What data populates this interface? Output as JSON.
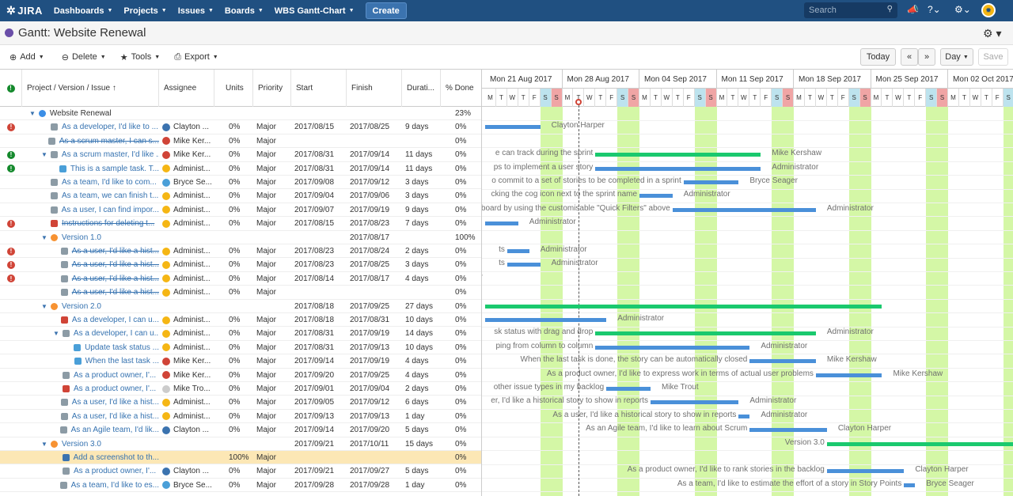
{
  "nav": {
    "logo": "JIRA",
    "items": [
      "Dashboards",
      "Projects",
      "Issues",
      "Boards",
      "WBS Gantt-Chart"
    ],
    "create": "Create",
    "search_placeholder": "Search"
  },
  "title": "Gantt:  Website Renewal",
  "toolbar": {
    "add": "Add",
    "delete": "Delete",
    "tools": "Tools",
    "export": "Export",
    "today": "Today",
    "prev": "«",
    "next": "»",
    "scale": "Day",
    "save": "Save"
  },
  "columns": {
    "issue": "Project / Version / Issue  ↑",
    "assignee": "Assignee",
    "units": "Units",
    "priority": "Priority",
    "start": "Start",
    "finish": "Finish",
    "duration": "Durati...",
    "done": "% Done"
  },
  "rows": [
    {
      "alert": "",
      "indent": 1,
      "caret": "▼",
      "type": "proj",
      "issue": "Website Renewal",
      "link": false,
      "strike": false,
      "assignee": "",
      "av": "",
      "units": "",
      "priority": "",
      "start": "",
      "finish": "",
      "duration": "",
      "done": "23%"
    },
    {
      "alert": "red",
      "indent": 2,
      "caret": "",
      "type": "story",
      "issue": "As a developer, I'd like to ...",
      "link": true,
      "strike": false,
      "assignee": "Clayton ...",
      "av": "#3b73af",
      "units": "0%",
      "priority": "Major",
      "start": "2017/08/15",
      "finish": "2017/08/25",
      "duration": "9 days",
      "done": "0%"
    },
    {
      "alert": "",
      "indent": 2,
      "caret": "",
      "type": "story",
      "issue": "As a scrum master, I can s...",
      "link": true,
      "strike": true,
      "assignee": "Mike Ker...",
      "av": "#d04437",
      "units": "0%",
      "priority": "Major",
      "start": "",
      "finish": "",
      "duration": "",
      "done": "0%"
    },
    {
      "alert": "green",
      "indent": 2,
      "caret": "▼",
      "type": "story",
      "issue": "As a scrum master, I'd like ...",
      "link": true,
      "strike": false,
      "assignee": "Mike Ker...",
      "av": "#d04437",
      "units": "0%",
      "priority": "Major",
      "start": "2017/08/31",
      "finish": "2017/09/14",
      "duration": "11 days",
      "done": "0%"
    },
    {
      "alert": "green",
      "indent": 3,
      "caret": "",
      "type": "task",
      "issue": "This is a sample task. T...",
      "link": true,
      "strike": false,
      "assignee": "Administ...",
      "av": "#f5b614",
      "units": "0%",
      "priority": "Major",
      "start": "2017/08/31",
      "finish": "2017/09/14",
      "duration": "11 days",
      "done": "0%"
    },
    {
      "alert": "",
      "indent": 2,
      "caret": "",
      "type": "story",
      "issue": "As a team, I'd like to com...",
      "link": true,
      "strike": false,
      "assignee": "Bryce Se...",
      "av": "#4a9fd8",
      "units": "0%",
      "priority": "Major",
      "start": "2017/09/08",
      "finish": "2017/09/12",
      "duration": "3 days",
      "done": "0%"
    },
    {
      "alert": "",
      "indent": 2,
      "caret": "",
      "type": "story",
      "issue": "As a team, we can finish t...",
      "link": true,
      "strike": false,
      "assignee": "Administ...",
      "av": "#f5b614",
      "units": "0%",
      "priority": "Major",
      "start": "2017/09/04",
      "finish": "2017/09/06",
      "duration": "3 days",
      "done": "0%"
    },
    {
      "alert": "",
      "indent": 2,
      "caret": "",
      "type": "story",
      "issue": "As a user, I can find impor...",
      "link": true,
      "strike": false,
      "assignee": "Administ...",
      "av": "#f5b614",
      "units": "0%",
      "priority": "Major",
      "start": "2017/09/07",
      "finish": "2017/09/19",
      "duration": "9 days",
      "done": "0%"
    },
    {
      "alert": "red",
      "indent": 2,
      "caret": "",
      "type": "bug",
      "issue": "Instructions for deleting t...",
      "link": true,
      "strike": true,
      "assignee": "Administ...",
      "av": "#f5b614",
      "units": "0%",
      "priority": "Major",
      "start": "2017/08/15",
      "finish": "2017/08/23",
      "duration": "7 days",
      "done": "0%"
    },
    {
      "alert": "",
      "indent": 2,
      "caret": "▼",
      "type": "ver",
      "issue": "Version 1.0",
      "link": true,
      "strike": false,
      "assignee": "",
      "av": "",
      "units": "",
      "priority": "",
      "start": "",
      "finish": "2017/08/17",
      "duration": "",
      "done": "100%"
    },
    {
      "alert": "red",
      "indent": 3,
      "caret": "",
      "type": "story",
      "issue": "As a user, I'd like a hist...",
      "link": true,
      "strike": true,
      "assignee": "Administ...",
      "av": "#f5b614",
      "units": "0%",
      "priority": "Major",
      "start": "2017/08/23",
      "finish": "2017/08/24",
      "duration": "2 days",
      "done": "0%"
    },
    {
      "alert": "red",
      "indent": 3,
      "caret": "",
      "type": "story",
      "issue": "As a user, I'd like a hist...",
      "link": true,
      "strike": true,
      "assignee": "Administ...",
      "av": "#f5b614",
      "units": "0%",
      "priority": "Major",
      "start": "2017/08/23",
      "finish": "2017/08/25",
      "duration": "3 days",
      "done": "0%"
    },
    {
      "alert": "red",
      "indent": 3,
      "caret": "",
      "type": "story",
      "issue": "As a user, I'd like a hist...",
      "link": true,
      "strike": true,
      "assignee": "Administ...",
      "av": "#f5b614",
      "units": "0%",
      "priority": "Major",
      "start": "2017/08/14",
      "finish": "2017/08/17",
      "duration": "4 days",
      "done": "0%"
    },
    {
      "alert": "",
      "indent": 3,
      "caret": "",
      "type": "story",
      "issue": "As a user, I'd like a hist...",
      "link": true,
      "strike": true,
      "assignee": "Administ...",
      "av": "#f5b614",
      "units": "0%",
      "priority": "Major",
      "start": "",
      "finish": "",
      "duration": "",
      "done": "0%"
    },
    {
      "alert": "",
      "indent": 2,
      "caret": "▼",
      "type": "ver",
      "issue": "Version 2.0",
      "link": true,
      "strike": false,
      "assignee": "",
      "av": "",
      "units": "",
      "priority": "",
      "start": "2017/08/18",
      "finish": "2017/09/25",
      "duration": "27 days",
      "done": "0%"
    },
    {
      "alert": "",
      "indent": 3,
      "caret": "",
      "type": "bug",
      "issue": "As a developer, I can u...",
      "link": true,
      "strike": false,
      "assignee": "Administ...",
      "av": "#f5b614",
      "units": "0%",
      "priority": "Major",
      "start": "2017/08/18",
      "finish": "2017/08/31",
      "duration": "10 days",
      "done": "0%"
    },
    {
      "alert": "",
      "indent": 3,
      "caret": "▼",
      "type": "story",
      "issue": "As a developer, I can u...",
      "link": true,
      "strike": false,
      "assignee": "Administ...",
      "av": "#f5b614",
      "units": "0%",
      "priority": "Major",
      "start": "2017/08/31",
      "finish": "2017/09/19",
      "duration": "14 days",
      "done": "0%"
    },
    {
      "alert": "",
      "indent": 4,
      "caret": "",
      "type": "task",
      "issue": "Update task status ...",
      "link": true,
      "strike": false,
      "assignee": "Administ...",
      "av": "#f5b614",
      "units": "0%",
      "priority": "Major",
      "start": "2017/08/31",
      "finish": "2017/09/13",
      "duration": "10 days",
      "done": "0%"
    },
    {
      "alert": "",
      "indent": 4,
      "caret": "",
      "type": "task",
      "issue": "When the last task ...",
      "link": true,
      "strike": false,
      "assignee": "Mike Ker...",
      "av": "#d04437",
      "units": "0%",
      "priority": "Major",
      "start": "2017/09/14",
      "finish": "2017/09/19",
      "duration": "4 days",
      "done": "0%"
    },
    {
      "alert": "",
      "indent": 3,
      "caret": "",
      "type": "story",
      "issue": "As a product owner, I'...",
      "link": true,
      "strike": false,
      "assignee": "Mike Ker...",
      "av": "#d04437",
      "units": "0%",
      "priority": "Major",
      "start": "2017/09/20",
      "finish": "2017/09/25",
      "duration": "4 days",
      "done": "0%"
    },
    {
      "alert": "",
      "indent": 3,
      "caret": "",
      "type": "bug",
      "issue": "As a product owner, I'...",
      "link": true,
      "strike": false,
      "assignee": "Mike Tro...",
      "av": "#ccc",
      "units": "0%",
      "priority": "Major",
      "start": "2017/09/01",
      "finish": "2017/09/04",
      "duration": "2 days",
      "done": "0%"
    },
    {
      "alert": "",
      "indent": 3,
      "caret": "",
      "type": "story",
      "issue": "As a user, I'd like a hist...",
      "link": true,
      "strike": false,
      "assignee": "Administ...",
      "av": "#f5b614",
      "units": "0%",
      "priority": "Major",
      "start": "2017/09/05",
      "finish": "2017/09/12",
      "duration": "6 days",
      "done": "0%"
    },
    {
      "alert": "",
      "indent": 3,
      "caret": "",
      "type": "story",
      "issue": "As a user, I'd like a hist...",
      "link": true,
      "strike": false,
      "assignee": "Administ...",
      "av": "#f5b614",
      "units": "0%",
      "priority": "Major",
      "start": "2017/09/13",
      "finish": "2017/09/13",
      "duration": "1 day",
      "done": "0%"
    },
    {
      "alert": "",
      "indent": 3,
      "caret": "",
      "type": "story",
      "issue": "As an Agile team, I'd lik...",
      "link": true,
      "strike": false,
      "assignee": "Clayton ...",
      "av": "#3b73af",
      "units": "0%",
      "priority": "Major",
      "start": "2017/09/14",
      "finish": "2017/09/20",
      "duration": "5 days",
      "done": "0%"
    },
    {
      "alert": "",
      "indent": 2,
      "caret": "▼",
      "type": "ver",
      "issue": "Version 3.0",
      "link": true,
      "strike": false,
      "assignee": "",
      "av": "",
      "units": "",
      "priority": "",
      "start": "2017/09/21",
      "finish": "2017/10/11",
      "duration": "15 days",
      "done": "0%"
    },
    {
      "alert": "",
      "indent": 3,
      "caret": "",
      "type": "check",
      "issue": "Add a screenshot to th...",
      "link": true,
      "strike": false,
      "assignee": "",
      "av": "",
      "units": "100%",
      "priority": "Major",
      "start": "",
      "finish": "",
      "duration": "",
      "done": "0%",
      "selected": true
    },
    {
      "alert": "",
      "indent": 3,
      "caret": "",
      "type": "story",
      "issue": "As a product owner, I'...",
      "link": true,
      "strike": false,
      "assignee": "Clayton ...",
      "av": "#3b73af",
      "units": "0%",
      "priority": "Major",
      "start": "2017/09/21",
      "finish": "2017/09/27",
      "duration": "5 days",
      "done": "0%"
    },
    {
      "alert": "",
      "indent": 3,
      "caret": "",
      "type": "story",
      "issue": "As a team, I'd like to es...",
      "link": true,
      "strike": false,
      "assignee": "Bryce Se...",
      "av": "#4a9fd8",
      "units": "0%",
      "priority": "Major",
      "start": "2017/09/28",
      "finish": "2017/09/28",
      "duration": "1 day",
      "done": "0%"
    }
  ],
  "weeks": [
    "Mon 21 Aug 2017",
    "Mon 28 Aug 2017",
    "Mon 04 Sep 2017",
    "Mon 11 Sep 2017",
    "Mon 18 Sep 2017",
    "Mon 25 Sep 2017",
    "Mon 02 Oct 2017"
  ],
  "day_letters": [
    "M",
    "T",
    "W",
    "T",
    "F",
    "S",
    "S"
  ],
  "chart_data": {
    "type": "gantt",
    "first_day": "2017/08/21",
    "today": "2017/08/29",
    "bars": [
      {
        "row": 1,
        "start": 0,
        "end": 5,
        "kind": "task",
        "label": "Clayton Harper"
      },
      {
        "row": 3,
        "start": 10,
        "end": 25,
        "kind": "summary",
        "label": "Mike Kershaw",
        "prefix": "e can track during the sprint"
      },
      {
        "row": 4,
        "start": 10,
        "end": 25,
        "kind": "task",
        "label": "Administrator",
        "prefix": "ps to implement a user story"
      },
      {
        "row": 5,
        "start": 18,
        "end": 23,
        "kind": "task",
        "label": "Bryce Seager",
        "prefix": "o commit to a set of stories to be completed in a sprint"
      },
      {
        "row": 6,
        "start": 14,
        "end": 17,
        "kind": "task",
        "label": "Administrator",
        "prefix": "cking the cog icon next to the sprint name"
      },
      {
        "row": 7,
        "start": 17,
        "end": 30,
        "kind": "task",
        "label": "Administrator",
        "prefix": "board by using the customisable \"Quick Filters\" above"
      },
      {
        "row": 8,
        "start": 0,
        "end": 3,
        "kind": "task",
        "label": "Administrator"
      },
      {
        "row": 10,
        "start": 2,
        "end": 4,
        "kind": "task",
        "label": "Administrator",
        "prefix": "ts"
      },
      {
        "row": 11,
        "start": 2,
        "end": 5,
        "kind": "task",
        "label": "Administrator",
        "prefix": "ts"
      },
      {
        "row": 12,
        "start": 0,
        "end": 0,
        "kind": "task",
        "label": "",
        "prefix": "istrator"
      },
      {
        "row": 14,
        "start": 0,
        "end": 36,
        "kind": "summary",
        "label": ""
      },
      {
        "row": 15,
        "start": 0,
        "end": 11,
        "kind": "task",
        "label": "Administrator"
      },
      {
        "row": 16,
        "start": 10,
        "end": 30,
        "kind": "summary",
        "label": "Administrator",
        "prefix": "sk status with drag and drop"
      },
      {
        "row": 17,
        "start": 10,
        "end": 24,
        "kind": "task",
        "label": "Administrator",
        "prefix": "ping from column to column"
      },
      {
        "row": 18,
        "start": 24,
        "end": 30,
        "kind": "task",
        "label": "Mike Kershaw",
        "prefix": "When the last task is done, the story can be automatically closed"
      },
      {
        "row": 19,
        "start": 30,
        "end": 36,
        "kind": "task",
        "label": "Mike Kershaw",
        "prefix": "As a product owner, I'd like to express work in terms of actual user problems"
      },
      {
        "row": 20,
        "start": 11,
        "end": 15,
        "kind": "task",
        "label": "Mike Trout",
        "prefix": "other issue types in my backlog"
      },
      {
        "row": 21,
        "start": 15,
        "end": 23,
        "kind": "task",
        "label": "Administrator",
        "prefix": "er, I'd like a historical story to show in reports"
      },
      {
        "row": 22,
        "start": 23,
        "end": 24,
        "kind": "task",
        "label": "Administrator",
        "prefix": "As a user, I'd like a historical story to show in reports"
      },
      {
        "row": 23,
        "start": 24,
        "end": 31,
        "kind": "task",
        "label": "Clayton Harper",
        "prefix": "As an Agile team, I'd like to learn about Scrum"
      },
      {
        "row": 24,
        "start": 31,
        "end": 48,
        "kind": "summary",
        "label": "",
        "prefix": "Version 3.0"
      },
      {
        "row": 26,
        "start": 31,
        "end": 38,
        "kind": "task",
        "label": "Clayton Harper",
        "prefix": "As a product owner, I'd like to rank stories in the backlog"
      },
      {
        "row": 27,
        "start": 38,
        "end": 39,
        "kind": "task",
        "label": "Bryce Seager",
        "prefix": "As a team, I'd like to estimate the effort of a story in Story Points"
      }
    ]
  }
}
